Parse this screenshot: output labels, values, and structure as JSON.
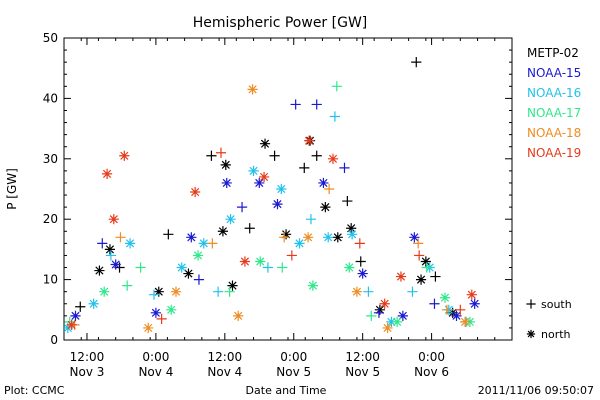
{
  "chart_data": {
    "type": "scatter",
    "title": "Hemispheric Power [GW]",
    "xlabel": "Date and Time",
    "ylabel": "P [GW]",
    "xlim": [
      "2011-11-03T08:00",
      "2011-11-06T14:00"
    ],
    "ylim": [
      0,
      50
    ],
    "yticks": [
      "0",
      "10",
      "20",
      "30",
      "40",
      "50"
    ],
    "xticks": [
      {
        "time": "2011-11-03T12:00",
        "line1": "12:00",
        "line2": "Nov 3"
      },
      {
        "time": "2011-11-04T00:00",
        "line1": "0:00",
        "line2": "Nov 4"
      },
      {
        "time": "2011-11-04T12:00",
        "line1": "12:00",
        "line2": "Nov 4"
      },
      {
        "time": "2011-11-05T00:00",
        "line1": "0:00",
        "line2": "Nov 5"
      },
      {
        "time": "2011-11-05T12:00",
        "line1": "12:00",
        "line2": "Nov 5"
      },
      {
        "time": "2011-11-06T00:00",
        "line1": "0:00",
        "line2": "Nov 6"
      }
    ],
    "grid": false,
    "legend_position": "right",
    "marker_legend": [
      {
        "symbol": "plus",
        "label": "south"
      },
      {
        "symbol": "star",
        "label": "north"
      }
    ],
    "series": [
      {
        "name": "METP-02",
        "color": "#000000",
        "points": [
          {
            "t": "2011-11-03T10:50",
            "v": 5.5,
            "hemi": "south"
          },
          {
            "t": "2011-11-03T14:10",
            "v": 11.5,
            "hemi": "north"
          },
          {
            "t": "2011-11-03T16:00",
            "v": 15.0,
            "hemi": "north"
          },
          {
            "t": "2011-11-03T17:40",
            "v": 12.0,
            "hemi": "south"
          },
          {
            "t": "2011-11-04T00:30",
            "v": 8.0,
            "hemi": "north"
          },
          {
            "t": "2011-11-04T02:10",
            "v": 17.5,
            "hemi": "south"
          },
          {
            "t": "2011-11-04T05:40",
            "v": 11.0,
            "hemi": "north"
          },
          {
            "t": "2011-11-04T09:40",
            "v": 30.5,
            "hemi": "south"
          },
          {
            "t": "2011-11-04T11:40",
            "v": 18.0,
            "hemi": "north"
          },
          {
            "t": "2011-11-04T12:10",
            "v": 29.0,
            "hemi": "north"
          },
          {
            "t": "2011-11-04T13:20",
            "v": 9.0,
            "hemi": "north"
          },
          {
            "t": "2011-11-04T16:20",
            "v": 18.5,
            "hemi": "south"
          },
          {
            "t": "2011-11-04T19:00",
            "v": 32.5,
            "hemi": "north"
          },
          {
            "t": "2011-11-04T20:40",
            "v": 30.5,
            "hemi": "south"
          },
          {
            "t": "2011-11-04T22:40",
            "v": 17.5,
            "hemi": "north"
          },
          {
            "t": "2011-11-05T01:50",
            "v": 28.5,
            "hemi": "south"
          },
          {
            "t": "2011-11-05T02:50",
            "v": 33.0,
            "hemi": "north"
          },
          {
            "t": "2011-11-05T04:00",
            "v": 30.5,
            "hemi": "south"
          },
          {
            "t": "2011-11-05T05:30",
            "v": 22.0,
            "hemi": "north"
          },
          {
            "t": "2011-11-05T07:40",
            "v": 17.0,
            "hemi": "north"
          },
          {
            "t": "2011-11-05T09:20",
            "v": 23.0,
            "hemi": "south"
          },
          {
            "t": "2011-11-05T10:00",
            "v": 18.5,
            "hemi": "north"
          },
          {
            "t": "2011-11-05T11:40",
            "v": 13.0,
            "hemi": "south"
          },
          {
            "t": "2011-11-05T15:00",
            "v": 5.0,
            "hemi": "north"
          },
          {
            "t": "2011-11-05T21:20",
            "v": 46.0,
            "hemi": "south"
          },
          {
            "t": "2011-11-05T22:10",
            "v": 10.0,
            "hemi": "north"
          },
          {
            "t": "2011-11-05T23:00",
            "v": 13.0,
            "hemi": "north"
          },
          {
            "t": "2011-11-06T00:40",
            "v": 10.5,
            "hemi": "south"
          },
          {
            "t": "2011-11-06T03:40",
            "v": 4.5,
            "hemi": "north"
          }
        ]
      },
      {
        "name": "NOAA-15",
        "color": "#1a1ad2",
        "points": [
          {
            "t": "2011-11-03T10:00",
            "v": 4.0,
            "hemi": "north"
          },
          {
            "t": "2011-11-03T14:40",
            "v": 16.0,
            "hemi": "south"
          },
          {
            "t": "2011-11-03T17:00",
            "v": 12.5,
            "hemi": "north"
          },
          {
            "t": "2011-11-04T00:00",
            "v": 4.5,
            "hemi": "north"
          },
          {
            "t": "2011-11-04T06:10",
            "v": 17.0,
            "hemi": "north"
          },
          {
            "t": "2011-11-04T07:30",
            "v": 10.0,
            "hemi": "south"
          },
          {
            "t": "2011-11-04T12:20",
            "v": 26.0,
            "hemi": "north"
          },
          {
            "t": "2011-11-04T15:00",
            "v": 22.0,
            "hemi": "south"
          },
          {
            "t": "2011-11-04T18:00",
            "v": 26.0,
            "hemi": "north"
          },
          {
            "t": "2011-11-04T21:10",
            "v": 22.5,
            "hemi": "north"
          },
          {
            "t": "2011-11-05T00:20",
            "v": 39.0,
            "hemi": "south"
          },
          {
            "t": "2011-11-05T04:00",
            "v": 39.0,
            "hemi": "south"
          },
          {
            "t": "2011-11-05T05:10",
            "v": 26.0,
            "hemi": "north"
          },
          {
            "t": "2011-11-05T08:50",
            "v": 28.5,
            "hemi": "south"
          },
          {
            "t": "2011-11-05T12:00",
            "v": 11.0,
            "hemi": "north"
          },
          {
            "t": "2011-11-05T14:50",
            "v": 4.5,
            "hemi": "south"
          },
          {
            "t": "2011-11-05T19:00",
            "v": 4.0,
            "hemi": "north"
          },
          {
            "t": "2011-11-05T21:00",
            "v": 17.0,
            "hemi": "north"
          },
          {
            "t": "2011-11-06T00:30",
            "v": 6.0,
            "hemi": "south"
          },
          {
            "t": "2011-11-06T04:20",
            "v": 4.0,
            "hemi": "north"
          },
          {
            "t": "2011-11-06T07:30",
            "v": 6.0,
            "hemi": "north"
          }
        ]
      },
      {
        "name": "NOAA-16",
        "color": "#21c2ec",
        "points": [
          {
            "t": "2011-11-03T08:40",
            "v": 2.0,
            "hemi": "north"
          },
          {
            "t": "2011-11-03T13:10",
            "v": 6.0,
            "hemi": "north"
          },
          {
            "t": "2011-11-03T16:10",
            "v": 14.0,
            "hemi": "south"
          },
          {
            "t": "2011-11-03T19:30",
            "v": 16.0,
            "hemi": "north"
          },
          {
            "t": "2011-11-03T23:40",
            "v": 7.5,
            "hemi": "south"
          },
          {
            "t": "2011-11-04T04:30",
            "v": 12.0,
            "hemi": "north"
          },
          {
            "t": "2011-11-04T08:20",
            "v": 16.0,
            "hemi": "north"
          },
          {
            "t": "2011-11-04T10:50",
            "v": 8.0,
            "hemi": "south"
          },
          {
            "t": "2011-11-04T13:00",
            "v": 20.0,
            "hemi": "north"
          },
          {
            "t": "2011-11-04T17:00",
            "v": 28.0,
            "hemi": "north"
          },
          {
            "t": "2011-11-04T19:30",
            "v": 12.0,
            "hemi": "south"
          },
          {
            "t": "2011-11-04T21:50",
            "v": 25.0,
            "hemi": "north"
          },
          {
            "t": "2011-11-05T01:00",
            "v": 16.0,
            "hemi": "north"
          },
          {
            "t": "2011-11-05T03:00",
            "v": 20.0,
            "hemi": "south"
          },
          {
            "t": "2011-11-05T06:00",
            "v": 17.0,
            "hemi": "north"
          },
          {
            "t": "2011-11-05T07:10",
            "v": 37.0,
            "hemi": "south"
          },
          {
            "t": "2011-11-05T10:10",
            "v": 17.5,
            "hemi": "north"
          },
          {
            "t": "2011-11-05T13:00",
            "v": 8.0,
            "hemi": "south"
          },
          {
            "t": "2011-11-05T17:00",
            "v": 3.0,
            "hemi": "north"
          },
          {
            "t": "2011-11-05T20:40",
            "v": 8.0,
            "hemi": "south"
          },
          {
            "t": "2011-11-05T23:40",
            "v": 12.0,
            "hemi": "north"
          },
          {
            "t": "2011-11-06T03:00",
            "v": 5.0,
            "hemi": "north"
          },
          {
            "t": "2011-11-06T06:00",
            "v": 3.0,
            "hemi": "south"
          }
        ]
      },
      {
        "name": "NOAA-17",
        "color": "#2ee88c",
        "points": [
          {
            "t": "2011-11-03T09:00",
            "v": 3.0,
            "hemi": "south"
          },
          {
            "t": "2011-11-03T15:00",
            "v": 8.0,
            "hemi": "north"
          },
          {
            "t": "2011-11-03T19:00",
            "v": 9.0,
            "hemi": "south"
          },
          {
            "t": "2011-11-03T21:20",
            "v": 12.0,
            "hemi": "south"
          },
          {
            "t": "2011-11-04T02:40",
            "v": 5.0,
            "hemi": "north"
          },
          {
            "t": "2011-11-04T07:20",
            "v": 14.0,
            "hemi": "north"
          },
          {
            "t": "2011-11-04T12:50",
            "v": 8.0,
            "hemi": "south"
          },
          {
            "t": "2011-11-04T18:10",
            "v": 13.0,
            "hemi": "north"
          },
          {
            "t": "2011-11-04T22:00",
            "v": 12.0,
            "hemi": "south"
          },
          {
            "t": "2011-11-05T03:20",
            "v": 9.0,
            "hemi": "north"
          },
          {
            "t": "2011-11-05T07:30",
            "v": 42.0,
            "hemi": "south"
          },
          {
            "t": "2011-11-05T09:40",
            "v": 12.0,
            "hemi": "north"
          },
          {
            "t": "2011-11-05T13:30",
            "v": 4.0,
            "hemi": "south"
          },
          {
            "t": "2011-11-05T18:00",
            "v": 3.0,
            "hemi": "north"
          },
          {
            "t": "2011-11-05T23:10",
            "v": 12.0,
            "hemi": "south"
          },
          {
            "t": "2011-11-06T02:20",
            "v": 7.0,
            "hemi": "north"
          },
          {
            "t": "2011-11-06T06:40",
            "v": 3.0,
            "hemi": "north"
          }
        ]
      },
      {
        "name": "NOAA-18",
        "color": "#ef8c22",
        "points": [
          {
            "t": "2011-11-03T09:50",
            "v": 2.5,
            "hemi": "south"
          },
          {
            "t": "2011-11-03T17:50",
            "v": 17.0,
            "hemi": "south"
          },
          {
            "t": "2011-11-03T22:40",
            "v": 2.0,
            "hemi": "north"
          },
          {
            "t": "2011-11-04T03:30",
            "v": 8.0,
            "hemi": "north"
          },
          {
            "t": "2011-11-04T09:50",
            "v": 16.0,
            "hemi": "south"
          },
          {
            "t": "2011-11-04T14:20",
            "v": 4.0,
            "hemi": "north"
          },
          {
            "t": "2011-11-04T16:50",
            "v": 41.5,
            "hemi": "north"
          },
          {
            "t": "2011-11-04T22:20",
            "v": 17.0,
            "hemi": "south"
          },
          {
            "t": "2011-11-05T02:30",
            "v": 17.0,
            "hemi": "north"
          },
          {
            "t": "2011-11-05T06:10",
            "v": 25.0,
            "hemi": "south"
          },
          {
            "t": "2011-11-05T11:00",
            "v": 8.0,
            "hemi": "north"
          },
          {
            "t": "2011-11-05T16:20",
            "v": 2.0,
            "hemi": "north"
          },
          {
            "t": "2011-11-05T21:40",
            "v": 16.0,
            "hemi": "south"
          },
          {
            "t": "2011-11-06T02:40",
            "v": 5.0,
            "hemi": "south"
          },
          {
            "t": "2011-11-06T05:50",
            "v": 3.0,
            "hemi": "north"
          }
        ]
      },
      {
        "name": "NOAA-19",
        "color": "#e83a1a",
        "points": [
          {
            "t": "2011-11-03T09:20",
            "v": 2.5,
            "hemi": "north"
          },
          {
            "t": "2011-11-03T15:30",
            "v": 27.5,
            "hemi": "north"
          },
          {
            "t": "2011-11-03T16:40",
            "v": 20.0,
            "hemi": "north"
          },
          {
            "t": "2011-11-03T18:30",
            "v": 30.5,
            "hemi": "north"
          },
          {
            "t": "2011-11-04T01:00",
            "v": 3.5,
            "hemi": "south"
          },
          {
            "t": "2011-11-04T06:50",
            "v": 24.5,
            "hemi": "north"
          },
          {
            "t": "2011-11-04T11:20",
            "v": 31.0,
            "hemi": "south"
          },
          {
            "t": "2011-11-04T15:30",
            "v": 13.0,
            "hemi": "north"
          },
          {
            "t": "2011-11-04T18:50",
            "v": 27.0,
            "hemi": "north"
          },
          {
            "t": "2011-11-04T23:40",
            "v": 14.0,
            "hemi": "south"
          },
          {
            "t": "2011-11-05T02:40",
            "v": 33.0,
            "hemi": "north"
          },
          {
            "t": "2011-11-05T06:50",
            "v": 30.0,
            "hemi": "north"
          },
          {
            "t": "2011-11-05T11:30",
            "v": 16.0,
            "hemi": "south"
          },
          {
            "t": "2011-11-05T15:50",
            "v": 6.0,
            "hemi": "north"
          },
          {
            "t": "2011-11-05T18:40",
            "v": 10.5,
            "hemi": "north"
          },
          {
            "t": "2011-11-05T21:50",
            "v": 14.0,
            "hemi": "south"
          },
          {
            "t": "2011-11-06T05:00",
            "v": 5.0,
            "hemi": "south"
          },
          {
            "t": "2011-11-06T07:00",
            "v": 7.5,
            "hemi": "north"
          }
        ]
      }
    ]
  },
  "footer": {
    "left": "Plot: CCMC",
    "right": "2011/11/06 09:50:07"
  }
}
